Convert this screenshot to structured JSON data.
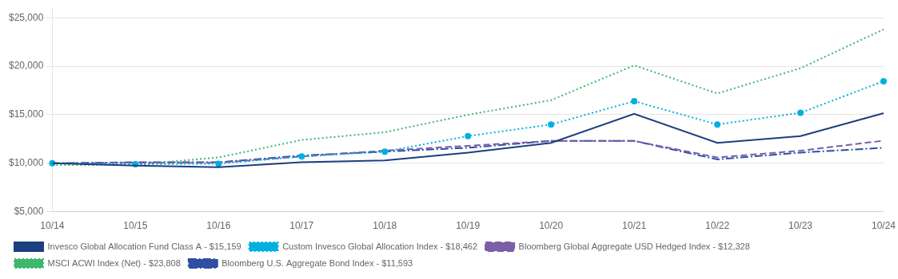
{
  "chart_data": {
    "type": "line",
    "categories": [
      "10/14",
      "10/15",
      "10/16",
      "10/17",
      "10/18",
      "10/19",
      "10/20",
      "10/21",
      "10/22",
      "10/23",
      "10/24"
    ],
    "series": [
      {
        "name": "Invesco Global Allocation Fund Class A - $15,159",
        "color": "#1b3f7f",
        "line_style": "solid",
        "values": [
          10000,
          9750,
          9600,
          10100,
          10300,
          11100,
          12100,
          15100,
          12100,
          12800,
          15159
        ]
      },
      {
        "name": "Custom Invesco Global Allocation Index - $18,462",
        "color": "#00b0e0",
        "line_style": "dotted",
        "marker": "circle",
        "values": [
          10000,
          9900,
          9950,
          10700,
          11200,
          12800,
          14000,
          16400,
          14000,
          15200,
          18462
        ]
      },
      {
        "name": "Bloomberg Global Aggregate USD Hedged Index - $12,328",
        "color": "#7b5ea7",
        "line_style": "dashed",
        "values": [
          10000,
          10050,
          10050,
          10700,
          11300,
          11800,
          12300,
          12300,
          10600,
          11300,
          12328
        ]
      },
      {
        "name": "MSCI ACWI Index (Net) - $23,808",
        "color": "#3db86a",
        "line_style": "dotted",
        "values": [
          9800,
          9850,
          10600,
          12400,
          13200,
          15000,
          16500,
          20100,
          17200,
          19800,
          23808
        ]
      },
      {
        "name": "Bloomberg U.S. Aggregate Bond Index - $11,593",
        "color": "#2e4fa3",
        "line_style": "dashdot",
        "values": [
          10000,
          10100,
          10100,
          10800,
          11200,
          11600,
          12300,
          12300,
          10400,
          11100,
          11593
        ]
      }
    ],
    "ylim": [
      5000,
      26000
    ],
    "yticks": [
      {
        "value": 5000,
        "label": "$5,000"
      },
      {
        "value": 10000,
        "label": "$10,000"
      },
      {
        "value": 15000,
        "label": "$15,000"
      },
      {
        "value": 20000,
        "label": "$20,000"
      },
      {
        "value": 25000,
        "label": "$25,000"
      }
    ],
    "grid": true,
    "legend": "bottom"
  }
}
